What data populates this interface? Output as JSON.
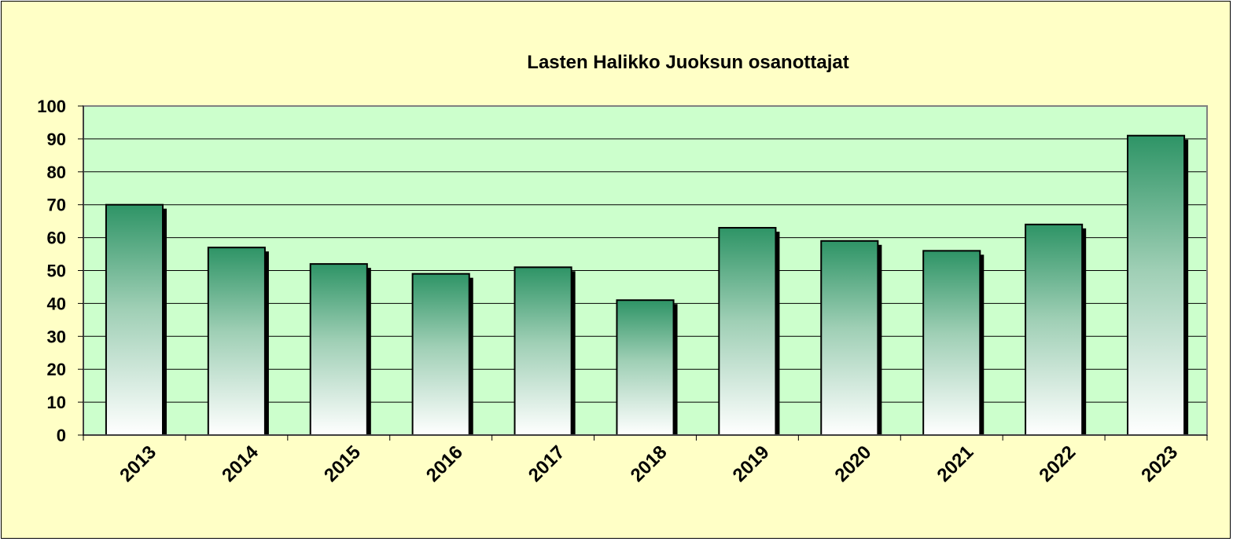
{
  "chart_data": {
    "type": "bar",
    "title": "Lasten Halikko Juoksun osanottajat",
    "xlabel": "",
    "ylabel": "",
    "categories": [
      "2013",
      "2014",
      "2015",
      "2016",
      "2017",
      "2018",
      "2019",
      "2020",
      "2021",
      "2022",
      "2023"
    ],
    "values": [
      70,
      57,
      52,
      49,
      51,
      41,
      63,
      59,
      56,
      64,
      91
    ],
    "ylim": [
      0,
      100
    ],
    "yticks": [
      "0",
      "10",
      "20",
      "30",
      "40",
      "50",
      "60",
      "70",
      "80",
      "90",
      "100"
    ],
    "grid": true,
    "legend": "none"
  },
  "colors": {
    "chart_area": "#ffffc6",
    "plot_area": "#ccffcc",
    "bar_top": "#2e9466",
    "bar_bottom": "#ffffff",
    "bar_outline": "#000000",
    "bar_shadow": "#000000",
    "plot_border": "#808080",
    "text": "#000000"
  }
}
